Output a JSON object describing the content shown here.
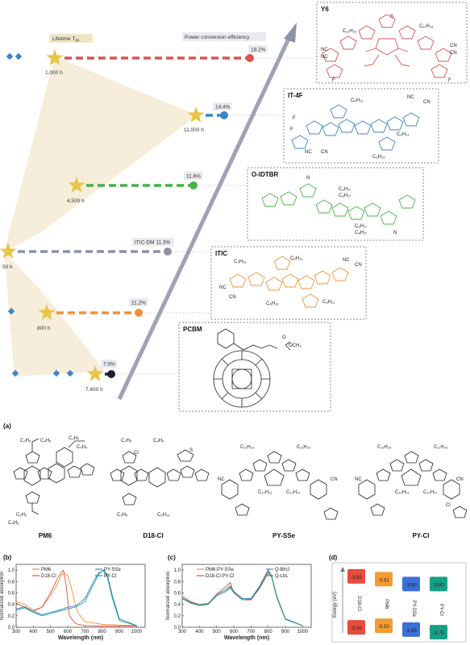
{
  "panel_a_top": {
    "lifetime_label": "Lifetime T",
    "lifetime_sub": "80",
    "pce_label": "Power conversion efficiency",
    "rows": [
      {
        "material": "Y6",
        "lifetime": "1,000 h",
        "pce": "18.2%",
        "color": "#d9534f"
      },
      {
        "material": "IT-4F",
        "lifetime": "11,000 h",
        "pce": "14.4%",
        "color": "#3a86c8"
      },
      {
        "material": "O-IDTBR",
        "lifetime": "4,500 h",
        "pce": "11.6%",
        "color": "#47b14a"
      },
      {
        "material": "ITIC-DM",
        "lifetime": "50 h",
        "pce": "ITIC-DM 11.3%",
        "color": "#8e90a8"
      },
      {
        "material": "ITIC",
        "lifetime": "800 h",
        "pce": "11.2%",
        "color": "#f0913a"
      },
      {
        "material": "PCBM",
        "lifetime": "7,400 h",
        "pce": "7.5%",
        "color": "#1c2233"
      }
    ]
  },
  "panel_a": {
    "label": "(a)",
    "molecules": [
      "PM6",
      "D18-Cl",
      "PY-SSe",
      "PY-Cl"
    ]
  },
  "panel_b": {
    "label": "(b)",
    "xlabel": "Wavelength (nm)",
    "ylabel": "Normalized absorption",
    "xticks": [
      "300",
      "400",
      "500",
      "600",
      "700",
      "800",
      "900",
      "1000"
    ],
    "yticks": [
      "0.0",
      "0.2",
      "0.4",
      "0.6",
      "0.8",
      "1.0"
    ],
    "legend": [
      {
        "name": "PM6",
        "color": "#f0913a"
      },
      {
        "name": "D18-Cl",
        "color": "#e74c3c"
      },
      {
        "name": "PY-SSe",
        "color": "#3b7dd8"
      },
      {
        "name": "PY-Cl",
        "color": "#16a085"
      }
    ]
  },
  "panel_c": {
    "label": "(c)",
    "xlabel": "Wavelength (nm)",
    "ylabel": "Normalized absorption",
    "xticks": [
      "300",
      "400",
      "500",
      "600",
      "700",
      "800",
      "900",
      "1000"
    ],
    "yticks": [
      "0.0",
      "0.2",
      "0.4",
      "0.6",
      "0.8",
      "1.0"
    ],
    "legend": [
      {
        "name": "PM6:PY-SSe",
        "color": "#f0913a"
      },
      {
        "name": "D18-Cl:PY-Cl",
        "color": "#e74c3c"
      },
      {
        "name": "Q-BHJ",
        "color": "#3b7dd8"
      },
      {
        "name": "Q-LbL",
        "color": "#16a085"
      }
    ]
  },
  "panel_d": {
    "label": "(d)",
    "ylabel": "Energy (eV)",
    "materials": [
      {
        "name": "D18-Cl",
        "lumo": "-3.50",
        "homo": "-5.56",
        "color": "#e74c3c"
      },
      {
        "name": "PM6",
        "lumo": "-3.61",
        "homo": "-5.50",
        "color": "#f39c34"
      },
      {
        "name": "PY-SSe",
        "lumo": "-3.80",
        "homo": "-5.65",
        "color": "#3b6fd8"
      },
      {
        "name": "PY-Cl",
        "lumo": "-3.80",
        "homo": "-5.75",
        "color": "#16a085"
      }
    ]
  },
  "chart_data": [
    {
      "type": "line",
      "title": "",
      "xlabel": "Wavelength (nm)",
      "ylabel": "Normalized absorption",
      "xlim": [
        300,
        1050
      ],
      "ylim": [
        0,
        1.1
      ],
      "series": [
        {
          "name": "PM6",
          "x": [
            300,
            350,
            400,
            450,
            500,
            540,
            560,
            580,
            600,
            620,
            640,
            660,
            700,
            800,
            1000
          ],
          "values": [
            0.45,
            0.4,
            0.3,
            0.35,
            0.55,
            0.75,
            0.9,
            0.95,
            0.9,
            0.7,
            0.45,
            0.25,
            0.1,
            0.05,
            0.03
          ]
        },
        {
          "name": "D18-Cl",
          "x": [
            300,
            350,
            400,
            450,
            500,
            540,
            560,
            575,
            590,
            610,
            640,
            660,
            700,
            800,
            1000
          ],
          "values": [
            0.42,
            0.35,
            0.28,
            0.35,
            0.6,
            0.85,
            0.95,
            1.0,
            0.75,
            0.2,
            0.08,
            0.05,
            0.03,
            0.02,
            0.02
          ]
        },
        {
          "name": "PY-SSe",
          "x": [
            300,
            350,
            400,
            450,
            500,
            550,
            600,
            650,
            700,
            750,
            780,
            810,
            830,
            860,
            900,
            1000
          ],
          "values": [
            0.32,
            0.36,
            0.28,
            0.22,
            0.26,
            0.3,
            0.35,
            0.38,
            0.5,
            0.8,
            0.95,
            1.0,
            0.92,
            0.55,
            0.15,
            0.03
          ]
        },
        {
          "name": "PY-Cl",
          "x": [
            300,
            350,
            400,
            450,
            500,
            550,
            600,
            650,
            700,
            750,
            780,
            805,
            830,
            860,
            900,
            1000
          ],
          "values": [
            0.3,
            0.34,
            0.26,
            0.2,
            0.24,
            0.28,
            0.32,
            0.36,
            0.45,
            0.75,
            0.93,
            1.0,
            0.88,
            0.5,
            0.12,
            0.03
          ]
        }
      ]
    },
    {
      "type": "line",
      "title": "",
      "xlabel": "Wavelength (nm)",
      "ylabel": "Normalized absorption",
      "xlim": [
        300,
        1050
      ],
      "ylim": [
        0,
        1.1
      ],
      "series": [
        {
          "name": "PM6:PY-SSe",
          "x": [
            300,
            350,
            400,
            450,
            500,
            550,
            580,
            600,
            650,
            700,
            750,
            800,
            820,
            850,
            900,
            1000
          ],
          "values": [
            0.55,
            0.45,
            0.4,
            0.42,
            0.55,
            0.62,
            0.68,
            0.62,
            0.5,
            0.5,
            0.7,
            0.98,
            0.9,
            0.55,
            0.15,
            0.03
          ]
        },
        {
          "name": "D18-Cl:PY-Cl",
          "x": [
            300,
            350,
            400,
            450,
            500,
            550,
            580,
            600,
            650,
            700,
            750,
            800,
            820,
            850,
            900,
            1000
          ],
          "values": [
            0.5,
            0.42,
            0.38,
            0.4,
            0.58,
            0.7,
            0.78,
            0.6,
            0.48,
            0.48,
            0.68,
            0.95,
            0.88,
            0.52,
            0.14,
            0.03
          ]
        },
        {
          "name": "Q-BHJ",
          "x": [
            300,
            350,
            400,
            450,
            500,
            550,
            580,
            600,
            650,
            700,
            750,
            800,
            820,
            850,
            900,
            1000
          ],
          "values": [
            0.52,
            0.44,
            0.39,
            0.41,
            0.57,
            0.65,
            0.72,
            0.63,
            0.5,
            0.5,
            0.72,
            1.0,
            0.9,
            0.54,
            0.15,
            0.03
          ]
        },
        {
          "name": "Q-LbL",
          "x": [
            300,
            350,
            400,
            450,
            500,
            550,
            580,
            600,
            650,
            700,
            750,
            800,
            820,
            850,
            900,
            1000
          ],
          "values": [
            0.5,
            0.43,
            0.38,
            0.4,
            0.55,
            0.62,
            0.7,
            0.6,
            0.48,
            0.49,
            0.7,
            0.99,
            0.89,
            0.53,
            0.14,
            0.03
          ]
        }
      ]
    }
  ]
}
